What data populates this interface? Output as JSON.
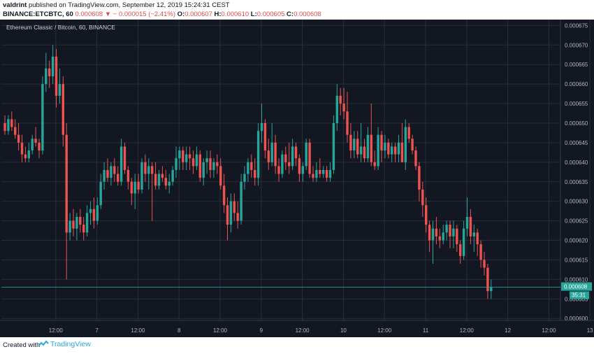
{
  "header": {
    "author": "valdrint",
    "published_text": "published on TradingView.com, September 12, 2019 15:24:31 CEST",
    "symbol": "BINANCE:ETCBTC, 60",
    "last": "0.000608",
    "change": "− 0.000015 (−2.41%)",
    "o_label": "O:",
    "o": "0.000607",
    "h_label": "H:",
    "h": "0.000610",
    "l_label": "L:",
    "l": "0.000605",
    "c_label": "C:",
    "c": "0.000608"
  },
  "footer": {
    "created_with": "Created with",
    "brand": "TradingView"
  },
  "colors": {
    "background": "#131722",
    "up": "#26a69a",
    "down": "#ef5350",
    "grid": "#2a2e39",
    "price_line": "#26a69a",
    "text": "#b2b5be"
  },
  "chart_data": {
    "type": "candlestick",
    "title": "Ethereum Classic / Bitcoin, 60, BINANCE",
    "y_ticks": [
      "0.000675",
      "0.000670",
      "0.000665",
      "0.000660",
      "0.000655",
      "0.000650",
      "0.000645",
      "0.000640",
      "0.000635",
      "0.000630",
      "0.000625",
      "0.000620",
      "0.000615",
      "0.000610",
      "0.000605",
      "0.000600"
    ],
    "y_range": [
      0.0006,
      0.000676
    ],
    "x_ticks": [
      {
        "label": "12:00",
        "t": 12
      },
      {
        "label": "7",
        "t": 24
      },
      {
        "label": "12:00",
        "t": 36
      },
      {
        "label": "8",
        "t": 48
      },
      {
        "label": "12:00",
        "t": 60
      },
      {
        "label": "9",
        "t": 72
      },
      {
        "label": "12:00",
        "t": 84
      },
      {
        "label": "10",
        "t": 96
      },
      {
        "label": "12:00",
        "t": 108
      },
      {
        "label": "11",
        "t": 120
      },
      {
        "label": "12:00",
        "t": 132
      },
      {
        "label": "12",
        "t": 144
      },
      {
        "label": "12:00",
        "t": 156
      },
      {
        "label": "13",
        "t": 168
      }
    ],
    "current_price": "0.000608",
    "countdown": "35:31",
    "candles": [
      [
        0.00065,
        0.000652,
        0.000647,
        0.000648
      ],
      [
        0.000648,
        0.000652,
        0.000647,
        0.000651
      ],
      [
        0.000651,
        0.000653,
        0.000648,
        0.000649
      ],
      [
        0.000649,
        0.000651,
        0.000646,
        0.000647
      ],
      [
        0.000647,
        0.00065,
        0.000643,
        0.000645
      ],
      [
        0.000645,
        0.000647,
        0.00064,
        0.000642
      ],
      [
        0.000642,
        0.000644,
        0.00064,
        0.000641
      ],
      [
        0.000641,
        0.000645,
        0.00064,
        0.000643
      ],
      [
        0.000643,
        0.000647,
        0.000642,
        0.000646
      ],
      [
        0.000646,
        0.000649,
        0.000644,
        0.000645
      ],
      [
        0.000645,
        0.000646,
        0.000641,
        0.000643
      ],
      [
        0.000643,
        0.000662,
        0.000642,
        0.00066
      ],
      [
        0.00066,
        0.000668,
        0.000658,
        0.000664
      ],
      [
        0.000664,
        0.000666,
        0.000659,
        0.000662
      ],
      [
        0.000662,
        0.00067,
        0.00066,
        0.000667
      ],
      [
        0.000667,
        0.000669,
        0.000654,
        0.000657
      ],
      [
        0.000657,
        0.000664,
        0.000655,
        0.00066
      ],
      [
        0.00066,
        0.000662,
        0.000644,
        0.000647
      ],
      [
        0.000647,
        0.00065,
        0.00061,
        0.000622
      ],
      [
        0.000622,
        0.000627,
        0.00062,
        0.000625
      ],
      [
        0.000625,
        0.000628,
        0.000621,
        0.000623
      ],
      [
        0.000623,
        0.000627,
        0.00062,
        0.000626
      ],
      [
        0.000626,
        0.000628,
        0.000622,
        0.000624
      ],
      [
        0.000624,
        0.000626,
        0.00062,
        0.000622
      ],
      [
        0.000622,
        0.000629,
        0.000621,
        0.000627
      ],
      [
        0.000627,
        0.00063,
        0.000624,
        0.000628
      ],
      [
        0.000628,
        0.000631,
        0.000623,
        0.000625
      ],
      [
        0.000625,
        0.000631,
        0.000624,
        0.000629
      ],
      [
        0.000629,
        0.000637,
        0.000628,
        0.000635
      ],
      [
        0.000635,
        0.00064,
        0.000633,
        0.000638
      ],
      [
        0.000638,
        0.000641,
        0.000635,
        0.000636
      ],
      [
        0.000636,
        0.00064,
        0.000634,
        0.000639
      ],
      [
        0.000639,
        0.000641,
        0.000635,
        0.000637
      ],
      [
        0.000637,
        0.000639,
        0.000634,
        0.000635
      ],
      [
        0.000635,
        0.000646,
        0.000634,
        0.000644
      ],
      [
        0.000644,
        0.000645,
        0.000637,
        0.000638
      ],
      [
        0.000638,
        0.000639,
        0.000633,
        0.000635
      ],
      [
        0.000635,
        0.000636,
        0.000629,
        0.000632
      ],
      [
        0.000632,
        0.000637,
        0.000628,
        0.000635
      ],
      [
        0.000635,
        0.000637,
        0.000632,
        0.000633
      ],
      [
        0.000633,
        0.000641,
        0.000632,
        0.00064
      ],
      [
        0.00064,
        0.000642,
        0.000635,
        0.000637
      ],
      [
        0.000637,
        0.000641,
        0.000633,
        0.000639
      ],
      [
        0.000639,
        0.00064,
        0.000625,
        0.000637
      ],
      [
        0.000637,
        0.00064,
        0.000633,
        0.000634
      ],
      [
        0.000634,
        0.000638,
        0.000633,
        0.000637
      ],
      [
        0.000637,
        0.000639,
        0.000635,
        0.000636
      ],
      [
        0.000636,
        0.000638,
        0.000633,
        0.000634
      ],
      [
        0.000634,
        0.000637,
        0.000632,
        0.000635
      ],
      [
        0.000635,
        0.000639,
        0.000634,
        0.000638
      ],
      [
        0.000638,
        0.000644,
        0.000636,
        0.000641
      ],
      [
        0.000641,
        0.000644,
        0.000638,
        0.000643
      ],
      [
        0.000643,
        0.000644,
        0.000638,
        0.00064
      ],
      [
        0.00064,
        0.000644,
        0.000638,
        0.000642
      ],
      [
        0.000642,
        0.000644,
        0.000638,
        0.000641
      ],
      [
        0.000641,
        0.000643,
        0.000637,
        0.000639
      ],
      [
        0.000639,
        0.000644,
        0.000638,
        0.000642
      ],
      [
        0.000642,
        0.000643,
        0.000635,
        0.000636
      ],
      [
        0.000636,
        0.000641,
        0.000634,
        0.00064
      ],
      [
        0.00064,
        0.000643,
        0.000637,
        0.000641
      ],
      [
        0.000641,
        0.000643,
        0.000636,
        0.000638
      ],
      [
        0.000638,
        0.000641,
        0.000636,
        0.00064
      ],
      [
        0.00064,
        0.000642,
        0.000637,
        0.000639
      ],
      [
        0.000639,
        0.000641,
        0.000633,
        0.000634
      ],
      [
        0.000634,
        0.000637,
        0.000627,
        0.000629
      ],
      [
        0.000629,
        0.000631,
        0.00062,
        0.000624
      ],
      [
        0.000624,
        0.000632,
        0.000622,
        0.00063
      ],
      [
        0.00063,
        0.000632,
        0.000625,
        0.000627
      ],
      [
        0.000627,
        0.00063,
        0.000623,
        0.000625
      ],
      [
        0.000625,
        0.000637,
        0.000624,
        0.000635
      ],
      [
        0.000635,
        0.000639,
        0.000633,
        0.000637
      ],
      [
        0.000637,
        0.000641,
        0.000635,
        0.00064
      ],
      [
        0.00064,
        0.000642,
        0.000636,
        0.000638
      ],
      [
        0.000638,
        0.000641,
        0.000634,
        0.000636
      ],
      [
        0.000636,
        0.00065,
        0.000634,
        0.000648
      ],
      [
        0.000648,
        0.000655,
        0.000645,
        0.00065
      ],
      [
        0.00065,
        0.000651,
        0.000641,
        0.000643
      ],
      [
        0.000643,
        0.000646,
        0.000638,
        0.00064
      ],
      [
        0.00064,
        0.00065,
        0.000639,
        0.000645
      ],
      [
        0.000645,
        0.000647,
        0.000637,
        0.000639
      ],
      [
        0.000639,
        0.000641,
        0.000635,
        0.000637
      ],
      [
        0.000637,
        0.000643,
        0.000636,
        0.000642
      ],
      [
        0.000642,
        0.000644,
        0.000638,
        0.00064
      ],
      [
        0.00064,
        0.000645,
        0.000637,
        0.000639
      ],
      [
        0.000639,
        0.000646,
        0.000638,
        0.000644
      ],
      [
        0.000644,
        0.000645,
        0.000639,
        0.000641
      ],
      [
        0.000641,
        0.000642,
        0.000635,
        0.000637
      ],
      [
        0.000637,
        0.00064,
        0.000635,
        0.000639
      ],
      [
        0.000639,
        0.000646,
        0.000638,
        0.000645
      ],
      [
        0.000645,
        0.000646,
        0.000636,
        0.000637
      ],
      [
        0.000637,
        0.000639,
        0.000635,
        0.000636
      ],
      [
        0.000636,
        0.00064,
        0.000635,
        0.000638
      ],
      [
        0.000638,
        0.000641,
        0.000636,
        0.000637
      ],
      [
        0.000637,
        0.000639,
        0.000636,
        0.000638
      ],
      [
        0.000638,
        0.000639,
        0.000635,
        0.000636
      ],
      [
        0.000636,
        0.00064,
        0.000635,
        0.000638
      ],
      [
        0.000638,
        0.000652,
        0.000637,
        0.00065
      ],
      [
        0.00065,
        0.00066,
        0.000648,
        0.000657
      ],
      [
        0.000657,
        0.000659,
        0.000652,
        0.000655
      ],
      [
        0.000655,
        0.000659,
        0.000651,
        0.000653
      ],
      [
        0.000653,
        0.000658,
        0.000645,
        0.000647
      ],
      [
        0.000647,
        0.00065,
        0.000641,
        0.000643
      ],
      [
        0.000643,
        0.000648,
        0.000641,
        0.000646
      ],
      [
        0.000646,
        0.000648,
        0.000641,
        0.000642
      ],
      [
        0.000642,
        0.00065,
        0.00064,
        0.000644
      ],
      [
        0.000644,
        0.000646,
        0.00064,
        0.000641
      ],
      [
        0.000641,
        0.000649,
        0.00064,
        0.000647
      ],
      [
        0.000647,
        0.000655,
        0.000639,
        0.00064
      ],
      [
        0.00064,
        0.000643,
        0.000638,
        0.000639
      ],
      [
        0.000639,
        0.000649,
        0.000638,
        0.000647
      ],
      [
        0.000647,
        0.000648,
        0.00064,
        0.000643
      ],
      [
        0.000643,
        0.000647,
        0.000641,
        0.000645
      ],
      [
        0.000645,
        0.000646,
        0.000641,
        0.000642
      ],
      [
        0.000642,
        0.000645,
        0.00064,
        0.000644
      ],
      [
        0.000644,
        0.000645,
        0.00064,
        0.000642
      ],
      [
        0.000642,
        0.000647,
        0.00064,
        0.000645
      ],
      [
        0.000645,
        0.00065,
        0.00064,
        0.00064
      ],
      [
        0.00064,
        0.000651,
        0.000638,
        0.000649
      ],
      [
        0.000649,
        0.00065,
        0.000645,
        0.000646
      ],
      [
        0.000646,
        0.000647,
        0.000642,
        0.000643
      ],
      [
        0.000643,
        0.000644,
        0.000638,
        0.000639
      ],
      [
        0.000639,
        0.00064,
        0.00063,
        0.000633
      ],
      [
        0.000633,
        0.000635,
        0.000626,
        0.000629
      ],
      [
        0.000629,
        0.000631,
        0.000622,
        0.000624
      ],
      [
        0.000624,
        0.000625,
        0.000617,
        0.00062
      ],
      [
        0.00062,
        0.000625,
        0.000614,
        0.000623
      ],
      [
        0.000623,
        0.000626,
        0.000619,
        0.000621
      ],
      [
        0.000621,
        0.000623,
        0.000618,
        0.00062
      ],
      [
        0.00062,
        0.000624,
        0.000619,
        0.000622
      ],
      [
        0.000622,
        0.000625,
        0.00062,
        0.000624
      ],
      [
        0.000624,
        0.000625,
        0.000618,
        0.000621
      ],
      [
        0.000621,
        0.000625,
        0.000618,
        0.000623
      ],
      [
        0.000623,
        0.000624,
        0.000617,
        0.000619
      ],
      [
        0.000619,
        0.00062,
        0.000614,
        0.000616
      ],
      [
        0.000616,
        0.000625,
        0.000615,
        0.000623
      ],
      [
        0.000623,
        0.000631,
        0.000621,
        0.000626
      ],
      [
        0.000626,
        0.000628,
        0.000619,
        0.000621
      ],
      [
        0.000621,
        0.000624,
        0.000617,
        0.000622
      ],
      [
        0.000622,
        0.000623,
        0.000616,
        0.000619
      ],
      [
        0.000619,
        0.00062,
        0.000613,
        0.000615
      ],
      [
        0.000615,
        0.000617,
        0.000611,
        0.000613
      ],
      [
        0.000613,
        0.000614,
        0.000605,
        0.000607
      ],
      [
        0.000607,
        0.00061,
        0.000605,
        0.000608
      ]
    ]
  }
}
